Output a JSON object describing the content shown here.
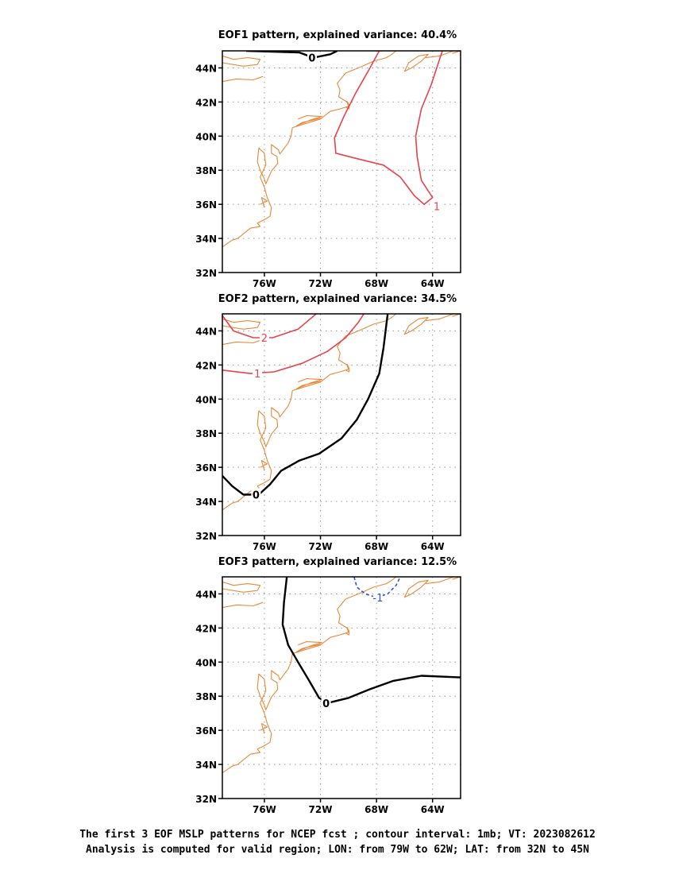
{
  "panels": [
    {
      "title": "EOF1 pattern, explained variance: 40.4%",
      "contours": [
        {
          "value": "0",
          "color": "#000000",
          "dash": false,
          "points": [
            [
              -77.3,
              45.0
            ],
            [
              -73.5,
              44.9
            ],
            [
              -72.5,
              44.6
            ],
            [
              -71.3,
              44.8
            ],
            [
              -70.8,
              45.0
            ]
          ],
          "label": [
            -72.6,
            44.6
          ]
        },
        {
          "value": "1",
          "color": "#e8434a",
          "dash": false,
          "points": [
            [
              -67.8,
              45.0
            ],
            [
              -68.6,
              43.8
            ],
            [
              -69.5,
              42.5
            ],
            [
              -70.3,
              41.2
            ],
            [
              -71.0,
              39.9
            ],
            [
              -70.9,
              39.0
            ],
            [
              -69.5,
              38.7
            ],
            [
              -67.5,
              38.3
            ],
            [
              -66.3,
              37.6
            ],
            [
              -65.3,
              36.5
            ],
            [
              -64.6,
              36.0
            ],
            [
              -64.0,
              36.4
            ],
            [
              -64.8,
              37.4
            ],
            [
              -65.1,
              38.8
            ],
            [
              -65.2,
              40.0
            ],
            [
              -64.8,
              41.6
            ],
            [
              -64.1,
              43.0
            ],
            [
              -63.5,
              44.5
            ],
            [
              -63.3,
              45.0
            ]
          ],
          "label": [
            -63.7,
            35.9
          ]
        }
      ]
    },
    {
      "title": "EOF2 pattern, explained variance: 34.5%",
      "contours": [
        {
          "value": "2",
          "color": "#e8434a",
          "dash": false,
          "points": [
            [
              -79.0,
              44.9
            ],
            [
              -78.2,
              44.0
            ],
            [
              -76.8,
              43.6
            ],
            [
              -75.4,
              43.6
            ],
            [
              -73.6,
              44.1
            ],
            [
              -72.3,
              45.0
            ]
          ],
          "label": [
            -76.0,
            43.6
          ]
        },
        {
          "value": "1",
          "color": "#e8434a",
          "dash": false,
          "points": [
            [
              -79.0,
              41.7
            ],
            [
              -77.0,
              41.5
            ],
            [
              -75.3,
              41.6
            ],
            [
              -73.3,
              42.1
            ],
            [
              -71.5,
              42.8
            ],
            [
              -70.2,
              43.6
            ],
            [
              -69.3,
              44.5
            ],
            [
              -68.9,
              45.0
            ]
          ],
          "label": [
            -76.5,
            41.5
          ]
        },
        {
          "value": "0",
          "color": "#000000",
          "dash": false,
          "points": [
            [
              -79.0,
              35.5
            ],
            [
              -78.3,
              34.9
            ],
            [
              -77.5,
              34.4
            ],
            [
              -76.4,
              34.4
            ],
            [
              -75.6,
              35.0
            ],
            [
              -74.8,
              35.8
            ],
            [
              -73.5,
              36.4
            ],
            [
              -72.1,
              36.8
            ],
            [
              -70.5,
              37.7
            ],
            [
              -69.4,
              38.8
            ],
            [
              -68.6,
              40.0
            ],
            [
              -67.8,
              41.5
            ],
            [
              -67.5,
              43.0
            ],
            [
              -67.2,
              45.0
            ]
          ],
          "label": [
            -76.6,
            34.4
          ]
        }
      ]
    },
    {
      "title": "EOF3 pattern, explained variance: 12.5%",
      "contours": [
        {
          "value": "-1",
          "color": "#2f4fe0",
          "dash": true,
          "points": [
            [
              -69.6,
              45.0
            ],
            [
              -69.4,
              44.4
            ],
            [
              -68.8,
              44.0
            ],
            [
              -68.0,
              43.8
            ],
            [
              -67.2,
              44.0
            ],
            [
              -66.6,
              44.5
            ],
            [
              -66.3,
              45.0
            ]
          ],
          "label": [
            -67.9,
            43.8
          ]
        },
        {
          "value": "0",
          "color": "#000000",
          "dash": false,
          "points": [
            [
              -74.4,
              45.0
            ],
            [
              -74.6,
              43.5
            ],
            [
              -74.7,
              42.2
            ],
            [
              -74.3,
              41.0
            ],
            [
              -73.6,
              40.0
            ],
            [
              -72.8,
              38.9
            ],
            [
              -72.1,
              37.9
            ],
            [
              -71.5,
              37.6
            ],
            [
              -70.0,
              37.9
            ],
            [
              -68.5,
              38.4
            ],
            [
              -66.8,
              38.9
            ],
            [
              -64.8,
              39.2
            ],
            [
              -62.0,
              39.1
            ]
          ],
          "label": [
            -71.6,
            37.6
          ]
        }
      ]
    }
  ],
  "axes": {
    "lon_range": [
      -79,
      -62
    ],
    "lat_range": [
      32,
      45
    ],
    "lon_ticks": [
      {
        "value": -76,
        "label": "76W"
      },
      {
        "value": -72,
        "label": "72W"
      },
      {
        "value": -68,
        "label": "68W"
      },
      {
        "value": -64,
        "label": "64W"
      }
    ],
    "lat_ticks": [
      {
        "value": 32,
        "label": "32N"
      },
      {
        "value": 34,
        "label": "34N"
      },
      {
        "value": 36,
        "label": "36N"
      },
      {
        "value": 38,
        "label": "38N"
      },
      {
        "value": 40,
        "label": "40N"
      },
      {
        "value": 42,
        "label": "42N"
      },
      {
        "value": 44,
        "label": "44N"
      }
    ]
  },
  "coastline": [
    [
      [
        -79.0,
        44.3
      ],
      [
        -77.5,
        44.1
      ],
      [
        -76.5,
        44.2
      ],
      [
        -76.3,
        44.5
      ],
      [
        -77.2,
        44.6
      ],
      [
        -78.2,
        44.5
      ],
      [
        -79.0,
        44.7
      ]
    ],
    [
      [
        -79.0,
        43.2
      ],
      [
        -78.0,
        43.35
      ],
      [
        -76.8,
        43.3
      ],
      [
        -76.1,
        43.5
      ]
    ],
    [
      [
        -74.0,
        40.5
      ],
      [
        -73.0,
        40.75
      ],
      [
        -72.0,
        41.0
      ],
      [
        -71.3,
        41.45
      ],
      [
        -70.6,
        41.6
      ],
      [
        -70.0,
        41.75
      ],
      [
        -70.1,
        42.0
      ],
      [
        -70.7,
        42.3
      ],
      [
        -70.6,
        42.7
      ],
      [
        -70.8,
        43.1
      ],
      [
        -70.2,
        43.7
      ],
      [
        -69.6,
        43.9
      ],
      [
        -69.0,
        44.1
      ],
      [
        -68.2,
        44.4
      ],
      [
        -67.3,
        44.6
      ],
      [
        -66.9,
        44.8
      ],
      [
        -66.6,
        45.0
      ]
    ],
    [
      [
        -72.0,
        41.05
      ],
      [
        -73.3,
        40.8
      ],
      [
        -73.7,
        40.6
      ],
      [
        -72.7,
        40.95
      ],
      [
        -71.9,
        41.15
      ],
      [
        -73.0,
        41.2
      ],
      [
        -73.6,
        41.0
      ]
    ],
    [
      [
        -70.1,
        42.05
      ],
      [
        -69.95,
        41.8
      ],
      [
        -69.95,
        41.6
      ],
      [
        -70.2,
        41.7
      ]
    ],
    [
      [
        -74.0,
        40.5
      ],
      [
        -74.1,
        40.0
      ],
      [
        -74.3,
        39.6
      ],
      [
        -74.9,
        38.95
      ],
      [
        -75.0,
        39.2
      ],
      [
        -75.5,
        39.5
      ],
      [
        -75.5,
        39.0
      ],
      [
        -75.1,
        38.8
      ],
      [
        -75.05,
        38.4
      ],
      [
        -75.5,
        37.95
      ],
      [
        -75.9,
        37.2
      ],
      [
        -76.0,
        37.5
      ],
      [
        -76.3,
        38.0
      ],
      [
        -76.5,
        38.5
      ],
      [
        -76.4,
        39.3
      ],
      [
        -76.0,
        39.0
      ],
      [
        -75.9,
        38.3
      ],
      [
        -76.3,
        37.6
      ],
      [
        -76.0,
        37.0
      ],
      [
        -75.8,
        36.4
      ],
      [
        -75.5,
        35.8
      ],
      [
        -75.6,
        35.3
      ],
      [
        -76.0,
        35.1
      ],
      [
        -76.5,
        34.9
      ],
      [
        -76.3,
        34.7
      ],
      [
        -77.0,
        34.6
      ],
      [
        -77.9,
        34.0
      ],
      [
        -78.3,
        33.9
      ],
      [
        -79.0,
        33.5
      ]
    ],
    [
      [
        -76.3,
        36.0
      ],
      [
        -75.8,
        36.2
      ],
      [
        -76.2,
        36.4
      ],
      [
        -76.0,
        35.8
      ]
    ],
    [
      [
        -64.3,
        44.8
      ],
      [
        -64.8,
        44.4
      ],
      [
        -65.5,
        44.0
      ],
      [
        -66.0,
        43.8
      ],
      [
        -65.7,
        44.3
      ],
      [
        -65.0,
        44.7
      ],
      [
        -64.3,
        44.8
      ]
    ],
    [
      [
        -64.5,
        44.6
      ],
      [
        -63.5,
        44.7
      ],
      [
        -62.5,
        45.0
      ]
    ],
    [
      [
        -62.0,
        45.0
      ],
      [
        -62.6,
        44.85
      ]
    ]
  ],
  "caption": {
    "line1": "The first 3 EOF MSLP patterns for NCEP fcst ; contour interval: 1mb; VT: 2023082612",
    "line2": "Analysis is computed for valid region; LON: from 79W to 62W; LAT: from 32N to 45N"
  }
}
